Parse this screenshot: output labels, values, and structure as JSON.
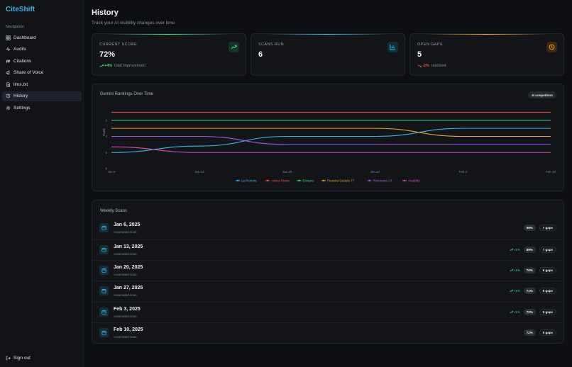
{
  "brand": "CiteShift",
  "nav": {
    "heading": "Navigation",
    "items": [
      {
        "label": "Dashboard",
        "icon": "dashboard-icon"
      },
      {
        "label": "Audits",
        "icon": "activity-icon"
      },
      {
        "label": "Citations",
        "icon": "quote-icon"
      },
      {
        "label": "Share of Voice",
        "icon": "megaphone-icon"
      },
      {
        "label": "llms.txt",
        "icon": "file-icon"
      },
      {
        "label": "History",
        "icon": "history-icon",
        "active": true
      },
      {
        "label": "Settings",
        "icon": "gear-icon"
      }
    ],
    "signout": "Sign out"
  },
  "header": {
    "title": "History",
    "subtitle": "Track your AI visibility changes over time"
  },
  "stats": [
    {
      "label": "CURRENT SCORE",
      "value": "72%",
      "delta": "+4%",
      "note": "total improvement",
      "accent": "#3ddc84",
      "icon": "trending-up-icon"
    },
    {
      "label": "SCANS RUN",
      "value": "6",
      "delta": "",
      "note": "",
      "accent": "#3fb3e4",
      "icon": "bar-chart-icon"
    },
    {
      "label": "OPEN GAPS",
      "value": "5",
      "delta": "-2%",
      "note": "resolved",
      "accent": "#f0a020",
      "icon": "clock-icon"
    }
  ],
  "chart": {
    "title": "Gemini Rankings Over Time",
    "badge": "6 competitors"
  },
  "chart_data": {
    "type": "line",
    "x": [
      "Jan 6",
      "Jan 13",
      "Jan 20",
      "Jan 27",
      "Feb 3",
      "Feb 10"
    ],
    "ylabel": "Rank",
    "yticks": [
      2,
      4,
      6,
      8
    ],
    "ylim": [
      8,
      0
    ],
    "ydomain": [
      0,
      8
    ],
    "grid": false,
    "legend": "bottom",
    "series": [
      {
        "name": "La Pentola",
        "color": "#3fb3e4",
        "values": [
          6,
          5.2,
          4,
          4,
          3,
          3
        ]
      },
      {
        "name": "Antica Roma",
        "color": "#e2574c",
        "values": [
          1,
          1,
          1,
          1,
          1,
          1
        ]
      },
      {
        "name": "Ernesto",
        "color": "#3ddc84",
        "values": [
          2,
          2,
          2,
          2,
          2,
          2
        ]
      },
      {
        "name": "Pizzeria Gretelo 77",
        "color": "#e9a23b",
        "values": [
          3,
          3,
          3,
          3,
          4,
          4
        ]
      },
      {
        "name": "Ristorante 23",
        "color": "#9b5de5",
        "values": [
          4,
          4,
          5,
          5,
          5,
          5
        ]
      },
      {
        "name": "AnabMy",
        "color": "#d44fc5",
        "values": [
          5.3,
          6,
          6,
          6,
          6,
          6
        ]
      }
    ]
  },
  "scans": {
    "title": "Weekly Scans",
    "rows": [
      {
        "date": "Jan 6, 2025",
        "sub": "Automated scan",
        "delta": "",
        "score": "68%",
        "gaps": "7 gaps"
      },
      {
        "date": "Jan 13, 2025",
        "sub": "Automated scan",
        "delta": "+1%",
        "score": "69%",
        "gaps": "7 gaps"
      },
      {
        "date": "Jan 20, 2025",
        "sub": "Automated scan",
        "delta": "+1%",
        "score": "70%",
        "gaps": "6 gaps"
      },
      {
        "date": "Jan 27, 2025",
        "sub": "Automated scan",
        "delta": "+1%",
        "score": "71%",
        "gaps": "6 gaps"
      },
      {
        "date": "Feb 3, 2025",
        "sub": "Automated scan",
        "delta": "+1%",
        "score": "72%",
        "gaps": "5 gaps"
      },
      {
        "date": "Feb 10, 2025",
        "sub": "Automated scan",
        "delta": "",
        "score": "72%",
        "gaps": "5 gaps"
      }
    ]
  }
}
